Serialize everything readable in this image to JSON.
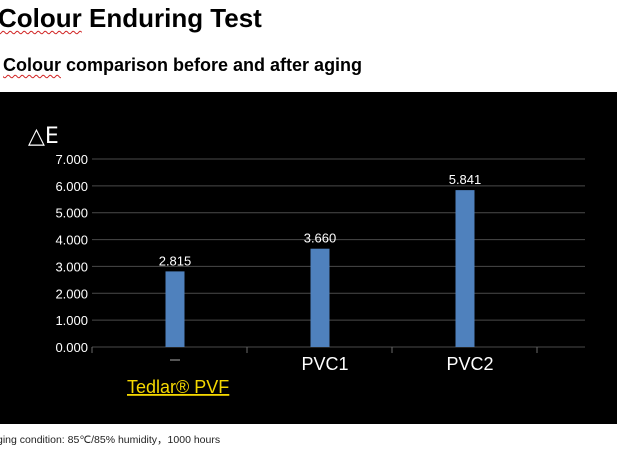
{
  "page": {
    "title_word": "Colour",
    "title_rest": " Enduring Test",
    "subtitle_word": "Colour",
    "subtitle_rest": " comparison before and after aging",
    "footnote": "ging condition: 85℃/85% humidity，1000 hours"
  },
  "colors": {
    "panel_background": "#000000",
    "bar": "#4f81bd",
    "axis_text": "#ffffff",
    "highlight_label": "#f5d800",
    "squiggle_underline": "#d02020"
  },
  "chart_data": {
    "type": "bar",
    "ylabel": "△E",
    "ylim": [
      0,
      7
    ],
    "yticks": [
      "0.000",
      "1.000",
      "2.000",
      "3.000",
      "4.000",
      "5.000",
      "6.000",
      "7.000"
    ],
    "grid": true,
    "categories": [
      "Tedlar® PVF",
      "PVC1",
      "PVC2"
    ],
    "values": [
      2.815,
      3.66,
      5.841
    ],
    "data_labels": [
      "2.815",
      "3.660",
      "5.841"
    ]
  }
}
